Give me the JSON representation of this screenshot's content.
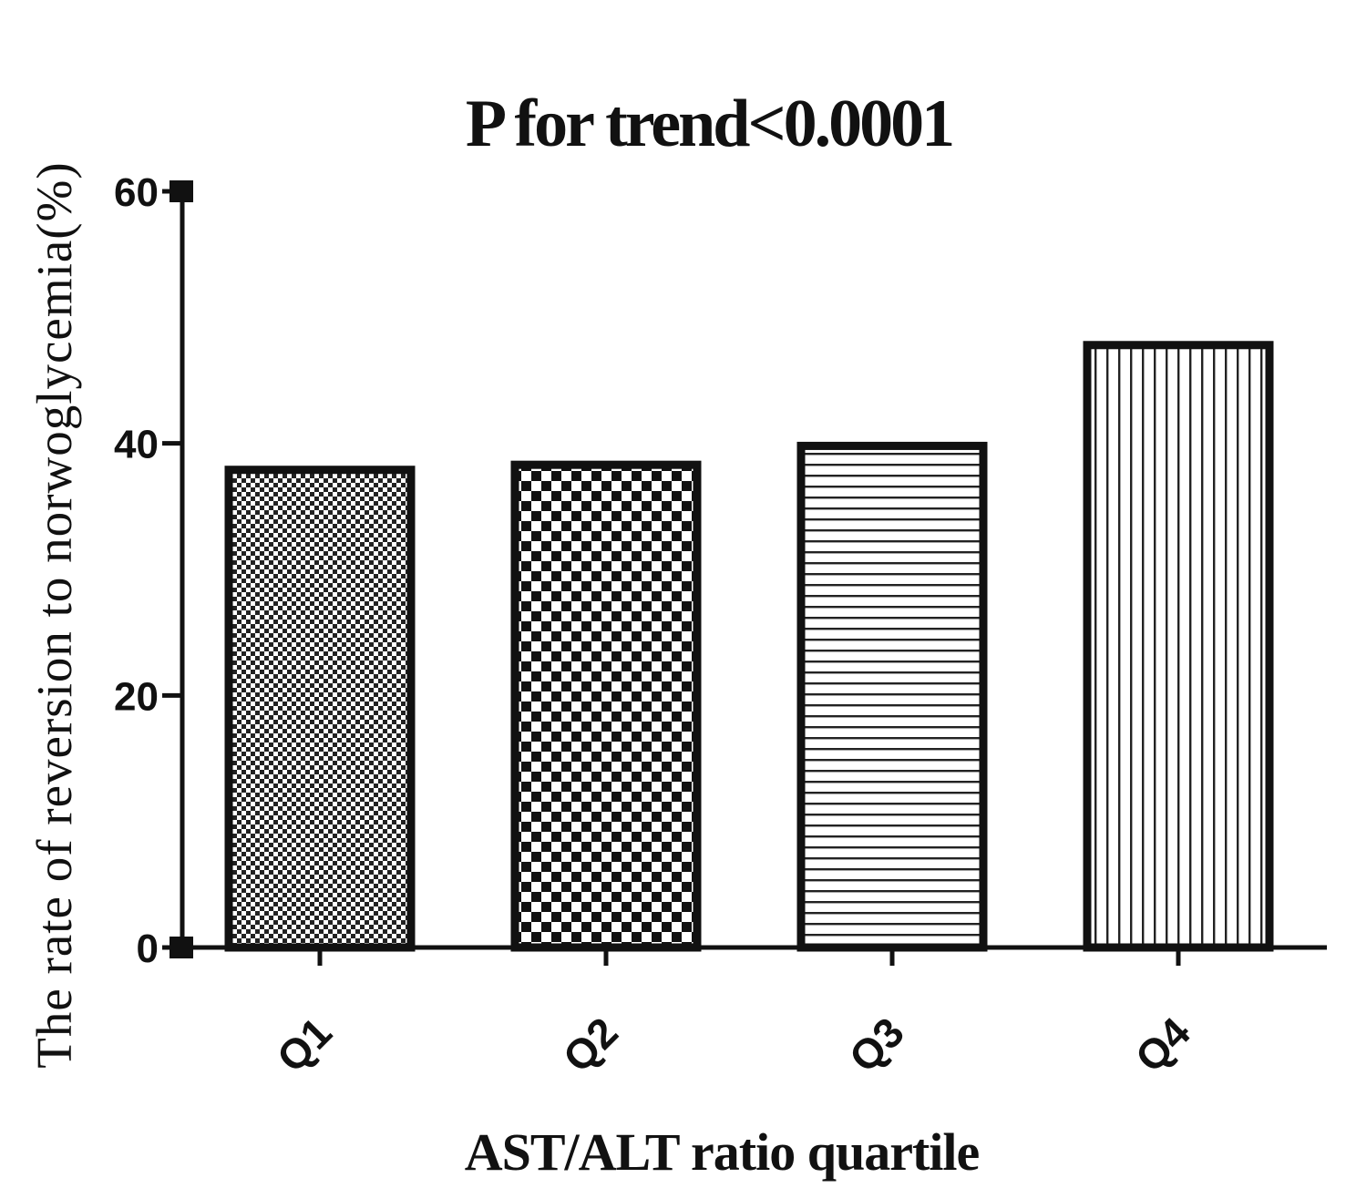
{
  "chart_data": {
    "type": "bar",
    "title": "P for trend<0.0001",
    "xlabel": "AST/ALT ratio quartile",
    "ylabel": "The rate of reversion to norwoglycemia(%)",
    "categories": [
      "Q1",
      "Q2",
      "Q3",
      "Q4"
    ],
    "values": [
      37.9,
      38.3,
      39.8,
      47.8
    ],
    "ylim": [
      0,
      60
    ],
    "yticks": [
      0,
      20,
      40,
      60
    ],
    "grid": false,
    "legend": "none",
    "bar_patterns": [
      "fine-dots",
      "checkerboard",
      "horizontal-lines",
      "vertical-lines"
    ],
    "colors": {
      "stroke": "#111111",
      "fill": "#ffffff"
    }
  }
}
